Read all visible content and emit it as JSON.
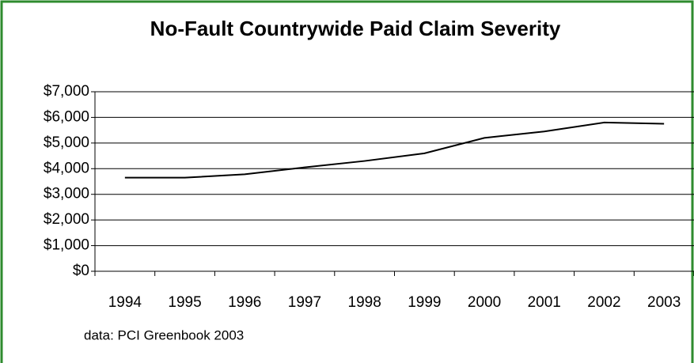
{
  "chart_data": {
    "type": "line",
    "title": "No-Fault Countrywide Paid Claim Severity",
    "note": "data: PCI Greenbook 2003",
    "categories": [
      "1994",
      "1995",
      "1996",
      "1997",
      "1998",
      "1999",
      "2000",
      "2001",
      "2002",
      "2003"
    ],
    "values": [
      3650,
      3650,
      3780,
      4050,
      4300,
      4600,
      5200,
      5450,
      5800,
      5750
    ],
    "color": "#000000",
    "ylim": [
      0,
      7000
    ],
    "yticks": [
      {
        "value": 0,
        "label": "$0"
      },
      {
        "value": 1000,
        "label": "$1,000"
      },
      {
        "value": 2000,
        "label": "$2,000"
      },
      {
        "value": 3000,
        "label": "$3,000"
      },
      {
        "value": 4000,
        "label": "$4,000"
      },
      {
        "value": 5000,
        "label": "$5,000"
      },
      {
        "value": 6000,
        "label": "$6,000"
      },
      {
        "value": 7000,
        "label": "$7,000"
      }
    ],
    "grid": true
  }
}
